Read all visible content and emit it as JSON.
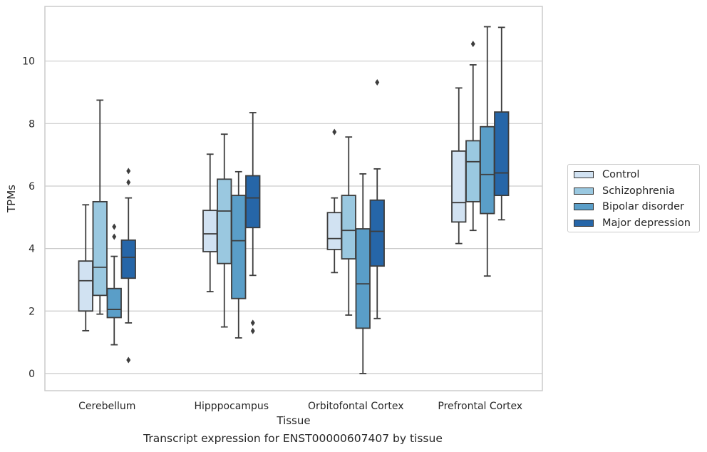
{
  "chart_data": {
    "type": "box",
    "caption": "Transcript expression for ENST00000607407 by tissue",
    "xlabel": "Tissue",
    "ylabel": "TPMs",
    "ylim": [
      -0.55,
      11.75
    ],
    "yticks": [
      0,
      2,
      4,
      6,
      8,
      10
    ],
    "grid": true,
    "legend_position": "right",
    "categories": [
      "Cerebellum",
      "Hipppocampus",
      "Orbitofontal Cortex",
      "Prefrontal Cortex"
    ],
    "series": [
      {
        "name": "Control",
        "color": "#d1e2f2",
        "boxes": [
          {
            "whislo": 1.37,
            "q1": 2.0,
            "med": 2.97,
            "q3": 3.6,
            "whishi": 5.4,
            "fliers": []
          },
          {
            "whislo": 2.62,
            "q1": 3.9,
            "med": 4.47,
            "q3": 5.22,
            "whishi": 7.02,
            "fliers": []
          },
          {
            "whislo": 3.23,
            "q1": 3.97,
            "med": 4.32,
            "q3": 5.15,
            "whishi": 5.62,
            "fliers": [
              7.73
            ]
          },
          {
            "whislo": 4.16,
            "q1": 4.85,
            "med": 5.47,
            "q3": 7.12,
            "whishi": 9.14,
            "fliers": []
          }
        ]
      },
      {
        "name": "Schizophrenia",
        "color": "#9ac8e0",
        "boxes": [
          {
            "whislo": 1.9,
            "q1": 2.5,
            "med": 3.4,
            "q3": 5.5,
            "whishi": 8.75,
            "fliers": []
          },
          {
            "whislo": 1.49,
            "q1": 3.52,
            "med": 5.2,
            "q3": 6.22,
            "whishi": 7.66,
            "fliers": []
          },
          {
            "whislo": 1.87,
            "q1": 3.67,
            "med": 4.58,
            "q3": 5.7,
            "whishi": 7.57,
            "fliers": []
          },
          {
            "whislo": 4.58,
            "q1": 5.5,
            "med": 6.78,
            "q3": 7.45,
            "whishi": 9.88,
            "fliers": [
              10.55
            ]
          }
        ]
      },
      {
        "name": "Bipolar disorder",
        "color": "#5a9ec8",
        "boxes": [
          {
            "whislo": 0.92,
            "q1": 1.79,
            "med": 2.05,
            "q3": 2.72,
            "whishi": 3.75,
            "fliers": [
              4.38,
              4.7
            ]
          },
          {
            "whislo": 1.14,
            "q1": 2.4,
            "med": 4.25,
            "q3": 5.7,
            "whishi": 6.46,
            "fliers": []
          },
          {
            "whislo": 0.0,
            "q1": 1.45,
            "med": 2.87,
            "q3": 4.63,
            "whishi": 6.39,
            "fliers": []
          },
          {
            "whislo": 3.12,
            "q1": 5.12,
            "med": 6.37,
            "q3": 7.9,
            "whishi": 11.1,
            "fliers": []
          }
        ]
      },
      {
        "name": "Major depression",
        "color": "#2666a8",
        "boxes": [
          {
            "whislo": 1.62,
            "q1": 3.05,
            "med": 3.72,
            "q3": 4.27,
            "whishi": 5.62,
            "fliers": [
              0.43,
              6.12,
              6.48
            ]
          },
          {
            "whislo": 3.14,
            "q1": 4.67,
            "med": 5.62,
            "q3": 6.33,
            "whishi": 8.35,
            "fliers": [
              1.36,
              1.62
            ]
          },
          {
            "whislo": 1.76,
            "q1": 3.44,
            "med": 4.55,
            "q3": 5.55,
            "whishi": 6.55,
            "fliers": [
              9.32
            ]
          },
          {
            "whislo": 4.92,
            "q1": 5.7,
            "med": 6.42,
            "q3": 8.37,
            "whishi": 11.08,
            "fliers": []
          }
        ]
      }
    ]
  }
}
